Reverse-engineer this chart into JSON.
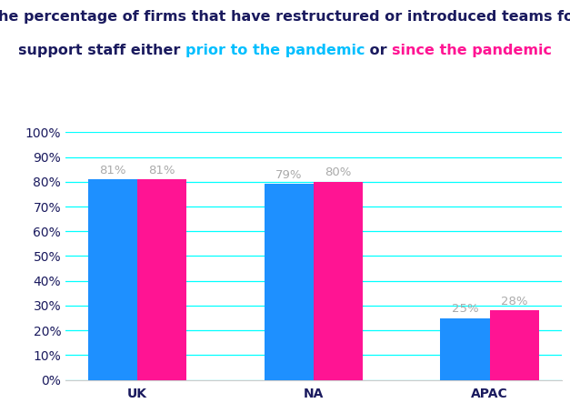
{
  "categories": [
    "UK",
    "NA",
    "APAC"
  ],
  "prior_values": [
    81,
    79,
    25
  ],
  "since_values": [
    81,
    80,
    28
  ],
  "prior_color": "#1E90FF",
  "since_color": "#FF1493",
  "title_line1": "The percentage of firms that have restructured or introduced teams for",
  "title_plain_start": "support staff either ",
  "title_prior_text": "prior to the pandemic",
  "title_mid": " or ",
  "title_since_text": "since the pandemic",
  "title_color_main": "#1a1a5e",
  "title_color_prior": "#00BFFF",
  "title_color_since": "#FF1493",
  "bar_width": 0.28,
  "ylim": [
    0,
    100
  ],
  "yticks": [
    0,
    10,
    20,
    30,
    40,
    50,
    60,
    70,
    80,
    90,
    100
  ],
  "grid_color": "#00FFFF",
  "label_color": "#aaaaaa",
  "tick_color": "#1a1a5e",
  "background_color": "#ffffff",
  "title_fontsize": 11.5,
  "tick_fontsize": 10,
  "value_fontsize": 9.5
}
